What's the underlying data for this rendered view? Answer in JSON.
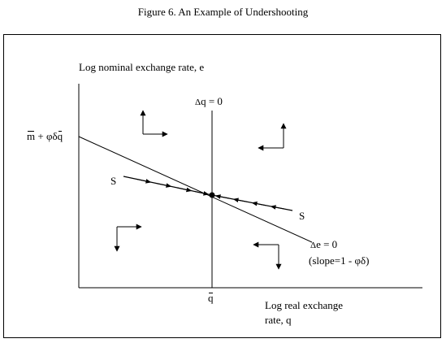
{
  "figure_title": "Figure 6.  An Example of Undershooting",
  "y_axis_label": "Log nominal exchange rate, e",
  "x_axis_label_line1": "Log real exchange",
  "x_axis_label_line2": "rate, q",
  "delta_q_label": "q = 0",
  "delta_e_label": "e = 0",
  "slope_note_prefix": "(slope=1 - ",
  "slope_note_symbol": "φδ",
  "slope_note_suffix": ")",
  "intercept_m": "m",
  "intercept_mid": " + φδ",
  "intercept_q": "q",
  "q_bar_tick": "q",
  "saddle_label_left": "S",
  "saddle_label_right": "S",
  "delta_symbol": "Δ"
}
